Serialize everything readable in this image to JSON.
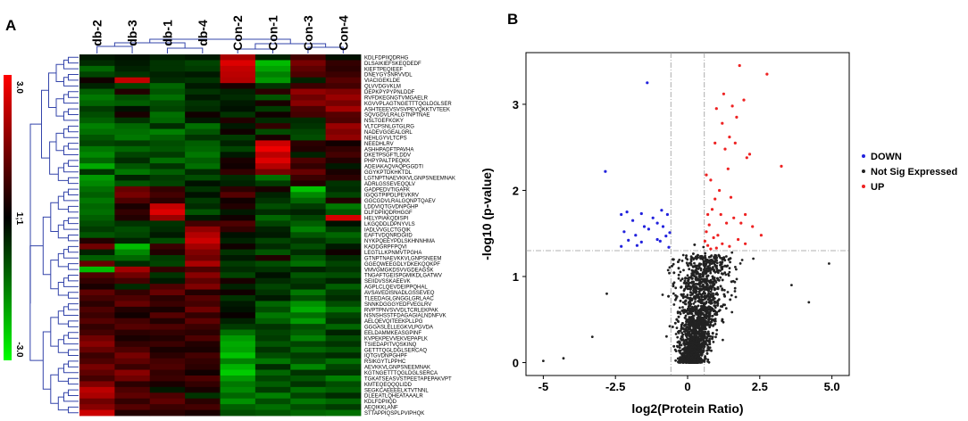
{
  "panels": {
    "a": "A",
    "b": "B"
  },
  "chart_data": [
    {
      "type": "heatmap",
      "columns": [
        "db-2",
        "db-3",
        "db-1",
        "db-4",
        "Con-2",
        "Con-1",
        "Con-3",
        "Con-4"
      ],
      "rows": [
        "KDLFDPIIQDRHG",
        "DLSAIKIEFSKEQDEDF",
        "KIEFTPEQIEEF",
        "DNEYGYSNRVVDL",
        "VIACIGEKLDE",
        "QLVVDGVKLM",
        "DEPKPYPYPNLDDF",
        "RVFDKEGNGTVMGAELR",
        "KGVVPLAGTNGETTTQGLDGLSER",
        "ASHTEEEVSVSVPEVQKKTVTEEK",
        "SQVGDVLRALGTNPTNAE",
        "NSLTGEFKGKY",
        "VLTCPSNLGTGLRG",
        "NADEVGGEALGRL",
        "NEHLGYVLTCPS",
        "NEEDHLRV",
        "ASHHPADFTPAVHA",
        "DKETPSGFTLDDV",
        "PHPYPALTPEQKK",
        "ADEIAKAQVAQPGGDTI",
        "GGYKPTDKHKTDL",
        "LGTNPTNAEVKKVLGNPSNEEMNAK",
        "ADRLGSSEVEQQLV",
        "GADPEDVTIGAFK",
        "IGQGTPIPDLPEVKRV",
        "GGCGDVLRALGQNPTQAEV",
        "LDDVIQTGVDNPGHP",
        "DLFDPIIQDRHGGF",
        "HELYPIAKQDISPI",
        "LKGQDDLDPNYVLS",
        "IADLVVGLCTGQIK",
        "EAFTVDQNRDGIID",
        "NYKPQEEYPDLSKHNNHMA",
        "KADDGRPFPQVI",
        "LEGTLLKPNMVTPGHA",
        "GTNPTNAEVKKVLGNPSNEEM",
        "GGEQWEEGDLYDKEKQQKPF",
        "VMVGMGKDSVVGDEAGSK",
        "TNGAFTGEISPGMIKDLGATWV",
        "SEIIDVSSKAEEVK",
        "AGPLCLQEVDEIPPQHAL",
        "AVSAVEDISNADLGSSEVEQ",
        "TLEEDAGLGNGGLGRLAAC",
        "SNNKDGGGYEDFVEGLRV",
        "RVPTPNVSVVDLTCRLEKPAK",
        "NSNSHSSTFDAGAGIALNDNFVK",
        "AELQEVQITEEKPLLPG",
        "GGGASLELLEGKVLPGVDA",
        "EELDAMMKEASGPINF",
        "KVPEKPEVVEKVEPAPLK",
        "TSIEDAPITVQSKINQ",
        "GETTTQGLDGLSERCAQ",
        "IQTGVDNPGHPF",
        "RSIKGYTLPPHC",
        "AEVKKVLGNPSNEEMNAK",
        "KGTNGETTTQGLDGLSERCA",
        "TGKATSEASVSTPEETAPEPAKVPT",
        "KMTEQEQQQLIDD",
        "SEGKCAEEEELKTVTNNL",
        "DLEEATLQHEATAAALR",
        "KDLFDPIIQD",
        "AEQIKKLANF",
        "STTAPPIQSPLPVIPHQK"
      ],
      "colorbar": {
        "max_label": "3.0",
        "mid_label": "1;1",
        "min_label": "-3.0",
        "range": [
          -3,
          3
        ]
      },
      "colors": {
        "high": "#ff0000",
        "mid": "#000000",
        "low": "#00ff00"
      },
      "values": [
        [
          -0.3,
          -0.2,
          -0.4,
          -0.3,
          2.0,
          -0.4,
          0.8,
          -0.2
        ],
        [
          -0.5,
          -0.3,
          -0.6,
          -0.8,
          2.6,
          -2.2,
          1.4,
          0.6
        ],
        [
          -1.2,
          -0.4,
          -0.6,
          -0.7,
          2.3,
          -1.9,
          1.1,
          0.5
        ],
        [
          -0.8,
          -0.6,
          -0.4,
          -0.3,
          2.2,
          -1.5,
          0.9,
          0.7
        ],
        [
          0.2,
          2.3,
          -0.5,
          -0.6,
          2.1,
          -1.8,
          -0.4,
          1.0
        ],
        [
          -0.4,
          -0.8,
          -1.2,
          -0.3,
          0.3,
          -0.6,
          0.7,
          0.8
        ],
        [
          -1.1,
          0.4,
          -1.0,
          -0.6,
          -0.4,
          0.5,
          1.7,
          1.5
        ],
        [
          -1.4,
          -0.9,
          -1.3,
          -0.3,
          -0.5,
          -1.0,
          1.3,
          1.8
        ],
        [
          -1.2,
          -1.1,
          -0.9,
          -0.6,
          -0.3,
          0.3,
          1.6,
          1.4
        ],
        [
          -0.7,
          -0.2,
          -0.8,
          -0.5,
          -0.2,
          -0.7,
          0.9,
          1.9
        ],
        [
          -0.9,
          0.3,
          -1.3,
          0.2,
          -0.6,
          0.2,
          0.8,
          1.0
        ],
        [
          -1.1,
          -0.6,
          -1.2,
          -0.3,
          0.4,
          -0.5,
          -0.5,
          0.9
        ],
        [
          -1.5,
          -1.2,
          -0.5,
          -1.3,
          -0.3,
          0.6,
          -0.6,
          1.8
        ],
        [
          -1.3,
          -1.3,
          -1.5,
          -1.0,
          0.2,
          -0.9,
          -0.8,
          1.5
        ],
        [
          -1.0,
          -1.4,
          -1.1,
          -0.6,
          -0.7,
          0.3,
          -0.9,
          1.7
        ],
        [
          -0.8,
          -0.7,
          -0.9,
          -1.1,
          -0.4,
          2.4,
          0.5,
          0.2
        ],
        [
          -1.4,
          -1.2,
          -1.0,
          -1.2,
          -0.8,
          2.8,
          0.4,
          0.6
        ],
        [
          -1.6,
          -0.8,
          -0.7,
          -1.4,
          -0.3,
          2.2,
          -0.4,
          0.8
        ],
        [
          -1.2,
          -0.5,
          -1.3,
          -1.1,
          0.3,
          2.6,
          0.9,
          0.4
        ],
        [
          -2.0,
          -1.0,
          -0.6,
          -1.3,
          0.2,
          2.1,
          0.6,
          -0.3
        ],
        [
          -0.6,
          -1.4,
          -1.1,
          -0.5,
          0.6,
          1.4,
          1.2,
          0.3
        ],
        [
          -1.8,
          -0.4,
          -0.7,
          -0.9,
          -0.5,
          -1.3,
          0.7,
          0.5
        ],
        [
          -1.6,
          -1.0,
          -0.8,
          -0.2,
          -0.4,
          -0.7,
          0.4,
          -0.6
        ],
        [
          -1.3,
          1.2,
          0.6,
          -0.6,
          0.5,
          0.3,
          -2.3,
          -0.5
        ],
        [
          -1.1,
          1.4,
          0.8,
          -0.2,
          1.0,
          -0.4,
          -1.6,
          -0.8
        ],
        [
          -1.4,
          0.9,
          0.5,
          -0.7,
          0.2,
          -0.6,
          -1.2,
          0.4
        ],
        [
          -1.2,
          0.3,
          2.3,
          -0.5,
          0.4,
          -0.9,
          -0.7,
          -1.4
        ],
        [
          -1.3,
          0.6,
          2.6,
          -1.0,
          -0.3,
          -0.5,
          -0.4,
          -1.0
        ],
        [
          -1.1,
          0.4,
          1.8,
          -0.3,
          0.2,
          -1.2,
          -0.8,
          2.5
        ],
        [
          -0.9,
          -0.6,
          -0.6,
          0.8,
          0.9,
          -0.8,
          -1.1,
          -0.2
        ],
        [
          -0.7,
          -0.9,
          -0.5,
          1.7,
          0.6,
          -0.4,
          -1.5,
          -0.7
        ],
        [
          -1.0,
          -0.8,
          -0.3,
          2.1,
          -0.2,
          -0.3,
          -1.0,
          -1.2
        ],
        [
          0.4,
          -0.4,
          -0.9,
          2.4,
          -0.4,
          -0.8,
          -0.6,
          -0.9
        ],
        [
          1.3,
          -2.2,
          0.7,
          1.9,
          0.2,
          -0.5,
          -0.9,
          -0.3
        ],
        [
          -0.4,
          -1.6,
          0.4,
          1.5,
          -0.6,
          -1.0,
          -0.5,
          0.2
        ],
        [
          -1.1,
          -1.2,
          -0.7,
          1.3,
          -0.3,
          0.4,
          -1.0,
          -0.5
        ],
        [
          1.2,
          -0.5,
          -0.8,
          2.0,
          -0.7,
          -0.9,
          -1.3,
          -0.8
        ],
        [
          -2.2,
          1.9,
          0.6,
          0.9,
          -0.5,
          -0.6,
          -0.4,
          -0.6
        ],
        [
          0.9,
          1.3,
          -0.6,
          1.6,
          -0.8,
          -0.2,
          -1.0,
          -0.9
        ],
        [
          0.6,
          0.8,
          -0.3,
          1.1,
          0.3,
          -0.5,
          -0.7,
          -0.4
        ],
        [
          0.3,
          -0.5,
          0.9,
          1.5,
          -0.4,
          -0.8,
          -0.5,
          -1.1
        ],
        [
          1.1,
          0.6,
          1.2,
          0.4,
          0.2,
          -0.6,
          -1.4,
          -0.7
        ],
        [
          0.8,
          0.9,
          0.5,
          1.0,
          -0.6,
          -0.3,
          -0.9,
          -0.5
        ],
        [
          0.5,
          1.2,
          0.7,
          0.8,
          -0.3,
          -1.2,
          -1.7,
          -0.9
        ],
        [
          0.9,
          0.4,
          0.3,
          1.3,
          -0.2,
          -0.9,
          -2.0,
          -1.4
        ],
        [
          0.7,
          0.2,
          1.0,
          0.6,
          0.1,
          -1.4,
          -1.3,
          -0.8
        ],
        [
          1.0,
          0.8,
          0.4,
          1.1,
          -0.4,
          -1.1,
          -1.8,
          -0.6
        ],
        [
          0.6,
          1.0,
          0.9,
          0.7,
          -0.7,
          -0.6,
          -0.9,
          -1.2
        ],
        [
          0.8,
          0.5,
          0.6,
          0.5,
          -1.3,
          -0.8,
          -1.1,
          -0.4
        ],
        [
          1.3,
          0.3,
          0.4,
          0.9,
          -1.8,
          -0.7,
          -1.5,
          -0.9
        ],
        [
          1.6,
          0.6,
          0.7,
          0.4,
          -2.0,
          -1.0,
          -0.8,
          -0.6
        ],
        [
          1.2,
          0.9,
          0.3,
          0.3,
          -1.9,
          -0.6,
          -1.2,
          -1.0
        ],
        [
          0.7,
          1.4,
          0.5,
          0.8,
          -2.3,
          -0.9,
          -0.7,
          -0.5
        ],
        [
          0.9,
          1.1,
          0.8,
          0.6,
          -1.5,
          -1.4,
          -0.9,
          -1.3
        ],
        [
          1.4,
          0.7,
          0.9,
          0.5,
          -2.1,
          -0.5,
          -1.6,
          -0.8
        ],
        [
          1.1,
          1.6,
          0.6,
          0.2,
          -2.4,
          -1.2,
          -0.6,
          -0.6
        ],
        [
          0.8,
          1.3,
          0.7,
          0.9,
          -1.8,
          -0.8,
          -1.0,
          -1.5
        ],
        [
          1.5,
          0.5,
          0.3,
          0.6,
          -1.4,
          -1.1,
          -0.6,
          -0.9
        ],
        [
          2.2,
          0.9,
          -0.3,
          0.3,
          -1.6,
          -0.7,
          -1.3,
          -1.1
        ],
        [
          2.0,
          1.1,
          0.9,
          -0.6,
          -1.2,
          -1.5,
          -0.8,
          -0.5
        ],
        [
          1.3,
          0.6,
          1.1,
          0.5,
          -1.7,
          -0.9,
          -1.4,
          -1.2
        ],
        [
          1.6,
          1.0,
          0.7,
          0.8,
          -1.1,
          -1.3,
          -0.9,
          -0.7
        ],
        [
          2.4,
          0.4,
          0.5,
          0.3,
          -0.9,
          -1.0,
          -1.2,
          -1.3
        ]
      ]
    },
    {
      "type": "scatter",
      "xlabel": "log2(Protein Ratio)",
      "ylabel": "-log10 (p-value)",
      "xlim": [
        -5.6,
        5.6
      ],
      "ylim": [
        -0.15,
        3.6
      ],
      "xticks": [
        -5,
        -2.5,
        0,
        2.5,
        5
      ],
      "xtick_labels": [
        "-5",
        "-2.5",
        "0",
        "2.5",
        "5.0"
      ],
      "yticks": [
        0,
        1,
        2,
        3
      ],
      "ytick_labels": [
        "0",
        "1",
        "2",
        "3"
      ],
      "thresholds": {
        "x": [
          -0.58,
          0.58
        ],
        "y": 1.3
      },
      "legend": {
        "position": "right",
        "entries": [
          "DOWN",
          "Not Sig Expressed",
          "UP"
        ]
      },
      "colors": {
        "DOWN": "#2222dd",
        "Not Sig Expressed": "#222222",
        "UP": "#ee2222"
      },
      "series": [
        {
          "name": "DOWN",
          "points": [
            [
              -1.4,
              3.25
            ],
            [
              -2.85,
              2.22
            ],
            [
              -1.9,
              1.65
            ],
            [
              -2.1,
              1.75
            ],
            [
              -2.3,
              1.72
            ],
            [
              -1.6,
              1.73
            ],
            [
              -1.2,
              1.68
            ],
            [
              -0.9,
              1.77
            ],
            [
              -0.7,
              1.72
            ],
            [
              -2.2,
              1.52
            ],
            [
              -1.8,
              1.48
            ],
            [
              -1.5,
              1.58
            ],
            [
              -1.35,
              1.55
            ],
            [
              -1.05,
              1.62
            ],
            [
              -0.85,
              1.58
            ],
            [
              -2.3,
              1.35
            ],
            [
              -2.05,
              1.42
            ],
            [
              -1.75,
              1.36
            ],
            [
              -1.05,
              1.43
            ],
            [
              -0.95,
              1.41
            ],
            [
              -0.75,
              1.47
            ],
            [
              -0.65,
              1.34
            ],
            [
              -0.62,
              1.51
            ],
            [
              -1.6,
              1.4
            ]
          ]
        },
        {
          "name": "UP",
          "points": [
            [
              1.8,
              3.45
            ],
            [
              2.75,
              3.35
            ],
            [
              1.25,
              3.12
            ],
            [
              1.95,
              3.05
            ],
            [
              1.55,
              2.98
            ],
            [
              1.0,
              2.95
            ],
            [
              1.2,
              2.78
            ],
            [
              1.7,
              2.85
            ],
            [
              1.45,
              2.62
            ],
            [
              1.3,
              2.48
            ],
            [
              0.95,
              2.55
            ],
            [
              1.65,
              2.55
            ],
            [
              2.05,
              2.38
            ],
            [
              2.15,
              2.42
            ],
            [
              3.25,
              2.28
            ],
            [
              1.4,
              2.25
            ],
            [
              0.8,
              2.12
            ],
            [
              0.65,
              2.18
            ],
            [
              1.1,
              2.0
            ],
            [
              1.5,
              1.92
            ],
            [
              0.95,
              1.9
            ],
            [
              0.85,
              1.78
            ],
            [
              0.7,
              1.72
            ],
            [
              1.15,
              1.72
            ],
            [
              1.6,
              1.68
            ],
            [
              2.0,
              1.72
            ],
            [
              1.85,
              1.62
            ],
            [
              2.25,
              1.58
            ],
            [
              0.75,
              1.6
            ],
            [
              1.35,
              1.62
            ],
            [
              2.55,
              1.48
            ],
            [
              0.65,
              1.52
            ],
            [
              0.9,
              1.45
            ],
            [
              1.2,
              1.38
            ],
            [
              1.75,
              1.43
            ],
            [
              0.7,
              1.36
            ],
            [
              1.0,
              1.33
            ],
            [
              0.6,
              1.41
            ],
            [
              1.05,
              1.48
            ],
            [
              2.0,
              1.38
            ],
            [
              0.8,
              1.32
            ],
            [
              1.45,
              1.35
            ]
          ]
        }
      ],
      "not_sig": {
        "name": "Not Sig Expressed",
        "count": 2400,
        "distribution": "volcano",
        "extremes": [
          [
            -5.0,
            0.02
          ],
          [
            4.9,
            1.15
          ],
          [
            4.2,
            0.7
          ],
          [
            -3.3,
            0.3
          ],
          [
            3.6,
            0.9
          ],
          [
            -2.8,
            0.8
          ],
          [
            -4.3,
            0.05
          ]
        ]
      }
    }
  ]
}
